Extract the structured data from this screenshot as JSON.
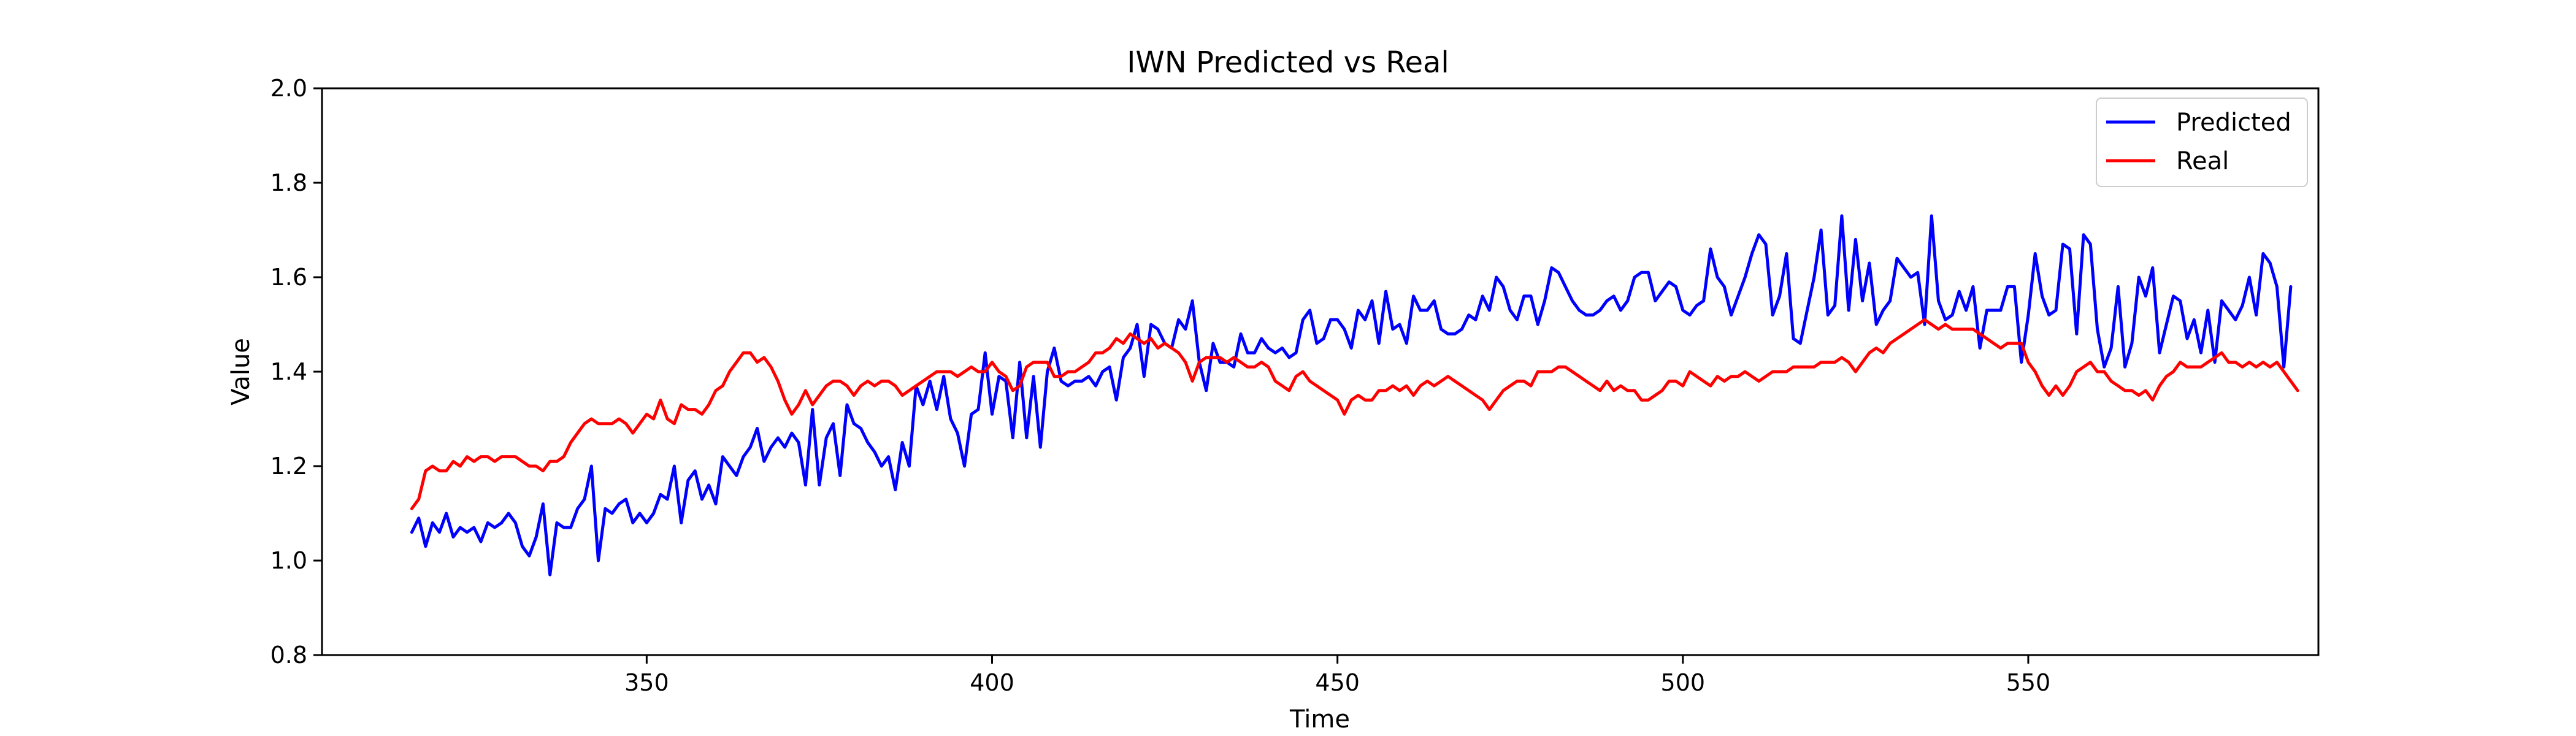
{
  "chart_data": {
    "type": "line",
    "title": "IWN Predicted vs Real",
    "xlabel": "Time",
    "ylabel": "Value",
    "xlim": [
      303,
      592
    ],
    "ylim": [
      0.8,
      2.0
    ],
    "x_ticks": [
      350,
      400,
      450,
      500,
      550
    ],
    "y_ticks": [
      0.8,
      1.0,
      1.2,
      1.4,
      1.6,
      1.8,
      2.0
    ],
    "grid": false,
    "legend_position": "top-right",
    "x_start": 316,
    "series": [
      {
        "name": "Predicted",
        "color": "#0000ff",
        "values": [
          1.06,
          1.09,
          1.03,
          1.08,
          1.06,
          1.1,
          1.05,
          1.07,
          1.06,
          1.07,
          1.04,
          1.08,
          1.07,
          1.08,
          1.1,
          1.08,
          1.03,
          1.01,
          1.05,
          1.12,
          0.97,
          1.08,
          1.07,
          1.07,
          1.11,
          1.13,
          1.2,
          1.0,
          1.11,
          1.1,
          1.12,
          1.13,
          1.08,
          1.1,
          1.08,
          1.1,
          1.14,
          1.13,
          1.2,
          1.08,
          1.17,
          1.19,
          1.13,
          1.16,
          1.12,
          1.22,
          1.2,
          1.18,
          1.22,
          1.24,
          1.28,
          1.21,
          1.24,
          1.26,
          1.24,
          1.27,
          1.25,
          1.16,
          1.32,
          1.16,
          1.26,
          1.29,
          1.18,
          1.33,
          1.29,
          1.28,
          1.25,
          1.23,
          1.2,
          1.22,
          1.15,
          1.25,
          1.2,
          1.37,
          1.33,
          1.38,
          1.32,
          1.39,
          1.3,
          1.27,
          1.2,
          1.31,
          1.32,
          1.44,
          1.31,
          1.39,
          1.38,
          1.26,
          1.42,
          1.26,
          1.39,
          1.24,
          1.4,
          1.45,
          1.38,
          1.37,
          1.38,
          1.38,
          1.39,
          1.37,
          1.4,
          1.41,
          1.34,
          1.43,
          1.45,
          1.5,
          1.39,
          1.5,
          1.49,
          1.46,
          1.45,
          1.51,
          1.49,
          1.55,
          1.42,
          1.36,
          1.46,
          1.42,
          1.42,
          1.41,
          1.48,
          1.44,
          1.44,
          1.47,
          1.45,
          1.44,
          1.45,
          1.43,
          1.44,
          1.51,
          1.53,
          1.46,
          1.47,
          1.51,
          1.51,
          1.49,
          1.45,
          1.53,
          1.51,
          1.55,
          1.46,
          1.57,
          1.49,
          1.5,
          1.46,
          1.56,
          1.53,
          1.53,
          1.55,
          1.49,
          1.48,
          1.48,
          1.49,
          1.52,
          1.51,
          1.56,
          1.53,
          1.6,
          1.58,
          1.53,
          1.51,
          1.56,
          1.56,
          1.5,
          1.55,
          1.62,
          1.61,
          1.58,
          1.55,
          1.53,
          1.52,
          1.52,
          1.53,
          1.55,
          1.56,
          1.53,
          1.55,
          1.6,
          1.61,
          1.61,
          1.55,
          1.57,
          1.59,
          1.58,
          1.53,
          1.52,
          1.54,
          1.55,
          1.66,
          1.6,
          1.58,
          1.52,
          1.56,
          1.6,
          1.65,
          1.69,
          1.67,
          1.52,
          1.56,
          1.65,
          1.47,
          1.46,
          1.53,
          1.6,
          1.7,
          1.52,
          1.54,
          1.73,
          1.53,
          1.68,
          1.55,
          1.63,
          1.5,
          1.53,
          1.55,
          1.64,
          1.62,
          1.6,
          1.61,
          1.5,
          1.73,
          1.55,
          1.51,
          1.52,
          1.57,
          1.53,
          1.58,
          1.45,
          1.53,
          1.53,
          1.53,
          1.58,
          1.58,
          1.42,
          1.52,
          1.65,
          1.56,
          1.52,
          1.53,
          1.67,
          1.66,
          1.48,
          1.69,
          1.67,
          1.49,
          1.41,
          1.45,
          1.58,
          1.41,
          1.46,
          1.6,
          1.56,
          1.62,
          1.44,
          1.5,
          1.56,
          1.55,
          1.47,
          1.51,
          1.44,
          1.53,
          1.42,
          1.55,
          1.53,
          1.51,
          1.54,
          1.6,
          1.52,
          1.65,
          1.63,
          1.58,
          1.41,
          1.58
        ]
      },
      {
        "name": "Real",
        "color": "#ff0000",
        "values": [
          1.11,
          1.13,
          1.19,
          1.2,
          1.19,
          1.19,
          1.21,
          1.2,
          1.22,
          1.21,
          1.22,
          1.22,
          1.21,
          1.22,
          1.22,
          1.22,
          1.21,
          1.2,
          1.2,
          1.19,
          1.21,
          1.21,
          1.22,
          1.25,
          1.27,
          1.29,
          1.3,
          1.29,
          1.29,
          1.29,
          1.3,
          1.29,
          1.27,
          1.29,
          1.31,
          1.3,
          1.34,
          1.3,
          1.29,
          1.33,
          1.32,
          1.32,
          1.31,
          1.33,
          1.36,
          1.37,
          1.4,
          1.42,
          1.44,
          1.44,
          1.42,
          1.43,
          1.41,
          1.38,
          1.34,
          1.31,
          1.33,
          1.36,
          1.33,
          1.35,
          1.37,
          1.38,
          1.38,
          1.37,
          1.35,
          1.37,
          1.38,
          1.37,
          1.38,
          1.38,
          1.37,
          1.35,
          1.36,
          1.37,
          1.38,
          1.39,
          1.4,
          1.4,
          1.4,
          1.39,
          1.4,
          1.41,
          1.4,
          1.4,
          1.42,
          1.4,
          1.39,
          1.36,
          1.37,
          1.41,
          1.42,
          1.42,
          1.42,
          1.39,
          1.39,
          1.4,
          1.4,
          1.41,
          1.42,
          1.44,
          1.44,
          1.45,
          1.47,
          1.46,
          1.48,
          1.47,
          1.46,
          1.47,
          1.45,
          1.46,
          1.45,
          1.44,
          1.42,
          1.38,
          1.42,
          1.43,
          1.43,
          1.43,
          1.42,
          1.43,
          1.42,
          1.41,
          1.41,
          1.42,
          1.41,
          1.38,
          1.37,
          1.36,
          1.39,
          1.4,
          1.38,
          1.37,
          1.36,
          1.35,
          1.34,
          1.31,
          1.34,
          1.35,
          1.34,
          1.34,
          1.36,
          1.36,
          1.37,
          1.36,
          1.37,
          1.35,
          1.37,
          1.38,
          1.37,
          1.38,
          1.39,
          1.38,
          1.37,
          1.36,
          1.35,
          1.34,
          1.32,
          1.34,
          1.36,
          1.37,
          1.38,
          1.38,
          1.37,
          1.4,
          1.4,
          1.4,
          1.41,
          1.41,
          1.4,
          1.39,
          1.38,
          1.37,
          1.36,
          1.38,
          1.36,
          1.37,
          1.36,
          1.36,
          1.34,
          1.34,
          1.35,
          1.36,
          1.38,
          1.38,
          1.37,
          1.4,
          1.39,
          1.38,
          1.37,
          1.39,
          1.38,
          1.39,
          1.39,
          1.4,
          1.39,
          1.38,
          1.39,
          1.4,
          1.4,
          1.4,
          1.41,
          1.41,
          1.41,
          1.41,
          1.42,
          1.42,
          1.42,
          1.43,
          1.42,
          1.4,
          1.42,
          1.44,
          1.45,
          1.44,
          1.46,
          1.47,
          1.48,
          1.49,
          1.5,
          1.51,
          1.5,
          1.49,
          1.5,
          1.49,
          1.49,
          1.49,
          1.49,
          1.48,
          1.47,
          1.46,
          1.45,
          1.46,
          1.46,
          1.46,
          1.42,
          1.4,
          1.37,
          1.35,
          1.37,
          1.35,
          1.37,
          1.4,
          1.41,
          1.42,
          1.4,
          1.4,
          1.38,
          1.37,
          1.36,
          1.36,
          1.35,
          1.36,
          1.34,
          1.37,
          1.39,
          1.4,
          1.42,
          1.41,
          1.41,
          1.41,
          1.42,
          1.43,
          1.44,
          1.42,
          1.42,
          1.41,
          1.42,
          1.41,
          1.42,
          1.41,
          1.42,
          1.4,
          1.38,
          1.36
        ]
      }
    ]
  }
}
